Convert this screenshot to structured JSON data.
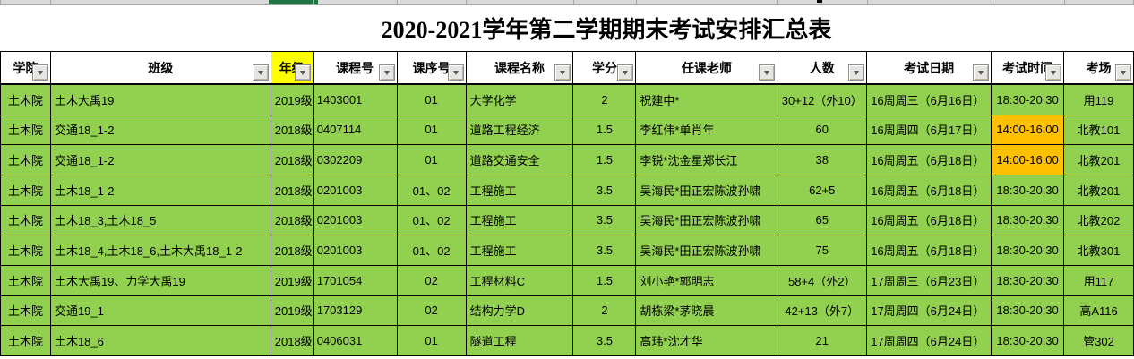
{
  "title": "2020-2021学年第二学期期末考试安排汇总表",
  "colors": {
    "row_green": "#92d050",
    "time_orange": "#ffc000",
    "grade_yellow": "#ffff00",
    "excel_selection_green": "#217346"
  },
  "table": {
    "columns": [
      {
        "key": "college",
        "label": "学院"
      },
      {
        "key": "class",
        "label": "班级"
      },
      {
        "key": "grade",
        "label": "年级",
        "highlight": true
      },
      {
        "key": "course_no",
        "label": "课程号"
      },
      {
        "key": "course_seq",
        "label": "课序号"
      },
      {
        "key": "course_name",
        "label": "课程名称"
      },
      {
        "key": "credits",
        "label": "学分"
      },
      {
        "key": "teacher",
        "label": "任课老师"
      },
      {
        "key": "count",
        "label": "人数"
      },
      {
        "key": "exam_date",
        "label": "考试日期"
      },
      {
        "key": "exam_time",
        "label": "考试时间"
      },
      {
        "key": "room",
        "label": "考场"
      }
    ],
    "rows": [
      {
        "college": "土木院",
        "class": "土木大禹19",
        "grade": "2019级",
        "course_no": "1403001",
        "course_seq": "01",
        "course_name": "大学化学",
        "credits": "2",
        "teacher": "祝建中*",
        "count": "30+12（外10）",
        "exam_date": "16周周三（6月16日）",
        "exam_time": "18:30-20:30",
        "room": "用119",
        "time_highlight": false
      },
      {
        "college": "土木院",
        "class": "交通18_1-2",
        "grade": "2018级",
        "course_no": "0407114",
        "course_seq": "01",
        "course_name": "道路工程经济",
        "credits": "1.5",
        "teacher": "李红伟*单肖年",
        "count": "60",
        "exam_date": "16周周四（6月17日）",
        "exam_time": "14:00-16:00",
        "room": "北教101",
        "time_highlight": true
      },
      {
        "college": "土木院",
        "class": "交通18_1-2",
        "grade": "2018级",
        "course_no": "0302209",
        "course_seq": "01",
        "course_name": "道路交通安全",
        "credits": "1.5",
        "teacher": "李锐*沈金星郑长江",
        "count": "38",
        "exam_date": "16周周五（6月18日）",
        "exam_time": "14:00-16:00",
        "room": "北教201",
        "time_highlight": true
      },
      {
        "college": "土木院",
        "class": "土木18_1-2",
        "grade": "2018级",
        "course_no": "0201003",
        "course_seq": "01、02",
        "course_name": "工程施工",
        "credits": "3.5",
        "teacher": "吴海民*田正宏陈波孙啸",
        "count": "62+5",
        "exam_date": "16周周五（6月18日）",
        "exam_time": "18:30-20:30",
        "room": "北教201",
        "time_highlight": false
      },
      {
        "college": "土木院",
        "class": "土木18_3,土木18_5",
        "grade": "2018级",
        "course_no": "0201003",
        "course_seq": "01、02",
        "course_name": "工程施工",
        "credits": "3.5",
        "teacher": "吴海民*田正宏陈波孙啸",
        "count": "65",
        "exam_date": "16周周五（6月18日）",
        "exam_time": "18:30-20:30",
        "room": "北教202",
        "time_highlight": false
      },
      {
        "college": "土木院",
        "class": "土木18_4,土木18_6,土木大禹18_1-2",
        "grade": "2018级",
        "course_no": "0201003",
        "course_seq": "01、02",
        "course_name": "工程施工",
        "credits": "3.5",
        "teacher": "吴海民*田正宏陈波孙啸",
        "count": "75",
        "exam_date": "16周周五（6月18日）",
        "exam_time": "18:30-20:30",
        "room": "北教301",
        "time_highlight": false
      },
      {
        "college": "土木院",
        "class": "土木大禹19、力学大禹19",
        "grade": "2019级",
        "course_no": "1701054",
        "course_seq": "02",
        "course_name": "工程材料C",
        "credits": "1.5",
        "teacher": "刘小艳*郭明志",
        "count": "58+4（外2）",
        "exam_date": "17周周三（6月23日）",
        "exam_time": "18:30-20:30",
        "room": "用117",
        "time_highlight": false
      },
      {
        "college": "土木院",
        "class": "交通19_1",
        "grade": "2019级",
        "course_no": "1703129",
        "course_seq": "02",
        "course_name": "结构力学D",
        "credits": "2",
        "teacher": "胡栋梁*茅晓晨",
        "count": "42+13（外7）",
        "exam_date": "17周周四（6月24日）",
        "exam_time": "18:30-20:30",
        "room": "高A116",
        "time_highlight": false
      },
      {
        "college": "土木院",
        "class": "土木18_6",
        "grade": "2018级",
        "course_no": "0406031",
        "course_seq": "01",
        "course_name": "隧道工程",
        "credits": "3.5",
        "teacher": "高玮*沈才华",
        "count": "21",
        "exam_date": "17周周四（6月24日）",
        "exam_time": "18:30-20:30",
        "room": "管302",
        "time_highlight": false
      }
    ]
  }
}
